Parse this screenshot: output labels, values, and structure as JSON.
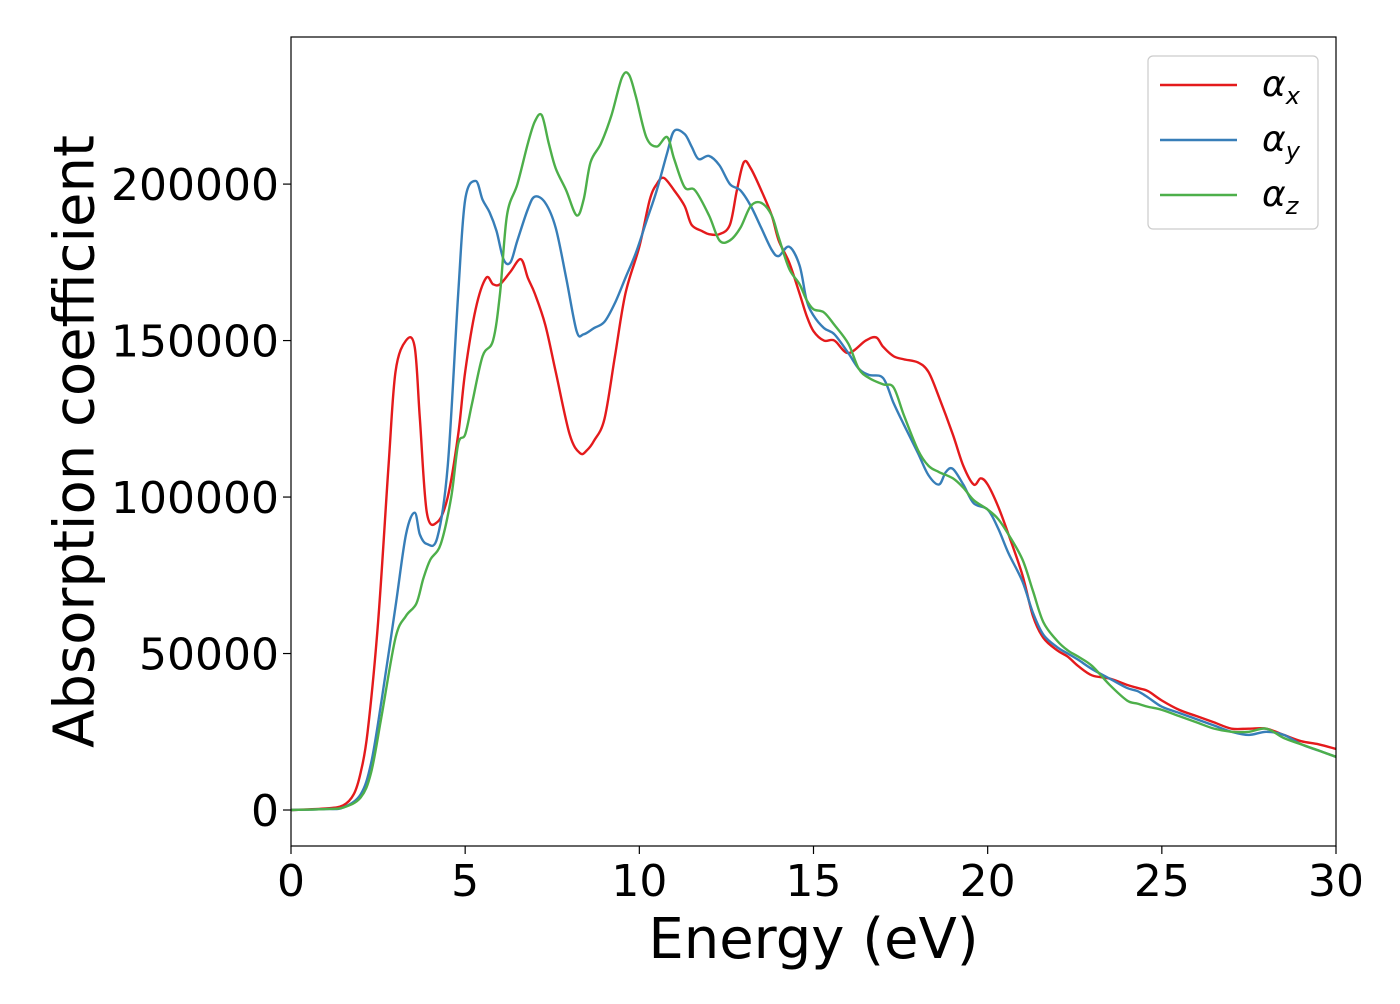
{
  "chart_data": {
    "type": "line",
    "title": "",
    "xlabel": "Energy (eV)",
    "ylabel": "Absorption coefficient",
    "xlim": [
      0,
      30
    ],
    "ylim": [
      -11500,
      247000
    ],
    "xticks": [
      0,
      5,
      10,
      15,
      20,
      25,
      30
    ],
    "yticks": [
      0,
      50000,
      100000,
      150000,
      200000
    ],
    "legend_position": "top-right",
    "grid": false,
    "series": [
      {
        "name_base": "α",
        "name_sub": "x",
        "color": "#e41a1c",
        "x": [
          0,
          1,
          1.5,
          1.8,
          2,
          2.2,
          2.5,
          2.8,
          3,
          3.3,
          3.55,
          3.7,
          3.9,
          4.2,
          4.5,
          4.8,
          5,
          5.3,
          5.6,
          5.8,
          6,
          6.3,
          6.6,
          6.8,
          7,
          7.3,
          7.6,
          8,
          8.3,
          8.5,
          8.7,
          9,
          9.3,
          9.6,
          10,
          10.3,
          10.5,
          10.7,
          11,
          11.3,
          11.5,
          11.8,
          12,
          12.3,
          12.6,
          12.8,
          13,
          13.2,
          13.5,
          13.8,
          14,
          14.3,
          14.6,
          14.8,
          15,
          15.3,
          15.6,
          16,
          16.5,
          16.8,
          17,
          17.3,
          17.6,
          18,
          18.3,
          18.6,
          19,
          19.3,
          19.6,
          19.8,
          20,
          20.3,
          20.6,
          21,
          21.3,
          21.6,
          22,
          22.3,
          22.6,
          23,
          23.5,
          24,
          24.3,
          24.6,
          25,
          25.5,
          26,
          26.5,
          27,
          27.5,
          28,
          28.5,
          29,
          29.5,
          30
        ],
        "y": [
          0,
          500,
          1500,
          5000,
          12000,
          25000,
          60000,
          110000,
          140000,
          150000,
          148000,
          125000,
          95000,
          92000,
          100000,
          120000,
          140000,
          160000,
          170000,
          168000,
          168000,
          172000,
          176000,
          170000,
          165000,
          155000,
          140000,
          120000,
          114000,
          115000,
          118000,
          125000,
          145000,
          165000,
          180000,
          195000,
          200000,
          202000,
          198000,
          193000,
          187000,
          185000,
          184000,
          184000,
          187000,
          198000,
          207000,
          205000,
          198000,
          190000,
          182000,
          175000,
          165000,
          158000,
          153000,
          150000,
          150000,
          146000,
          150000,
          151000,
          148000,
          145000,
          144000,
          143000,
          140000,
          132000,
          120000,
          110000,
          104000,
          106000,
          104000,
          97000,
          88000,
          75000,
          62000,
          55000,
          51000,
          49000,
          46000,
          43000,
          42000,
          40000,
          39000,
          38000,
          35000,
          32000,
          30000,
          28000,
          26000,
          26000,
          26000,
          24000,
          22000,
          21000,
          19500
        ]
      },
      {
        "name_base": "α",
        "name_sub": "y",
        "color": "#377eb8",
        "x": [
          0,
          1,
          1.5,
          2,
          2.3,
          2.6,
          3,
          3.3,
          3.55,
          3.7,
          3.9,
          4.2,
          4.5,
          4.8,
          5,
          5.3,
          5.5,
          5.7,
          5.9,
          6.1,
          6.3,
          6.5,
          6.8,
          7,
          7.3,
          7.6,
          7.9,
          8.2,
          8.4,
          8.7,
          9,
          9.3,
          9.6,
          9.9,
          10.2,
          10.5,
          10.8,
          11,
          11.3,
          11.5,
          11.7,
          12,
          12.3,
          12.6,
          12.9,
          13.2,
          13.5,
          13.8,
          14,
          14.3,
          14.6,
          14.8,
          15,
          15.3,
          15.6,
          16,
          16.3,
          16.6,
          17,
          17.3,
          17.6,
          18,
          18.3,
          18.6,
          18.8,
          19,
          19.3,
          19.6,
          20,
          20.3,
          20.6,
          21,
          21.3,
          21.6,
          22,
          22.3,
          22.6,
          23,
          23.5,
          24,
          24.3,
          24.6,
          25,
          25.5,
          26,
          26.5,
          27,
          27.5,
          28,
          28.5,
          29,
          29.5,
          30
        ],
        "y": [
          0,
          300,
          800,
          5000,
          15000,
          35000,
          65000,
          88000,
          95000,
          88000,
          85000,
          87000,
          110000,
          165000,
          195000,
          201000,
          195000,
          191000,
          185000,
          176000,
          175000,
          182000,
          192000,
          196000,
          194000,
          186000,
          170000,
          153000,
          152000,
          154000,
          156000,
          162000,
          170000,
          178000,
          188000,
          198000,
          210000,
          217000,
          216000,
          212000,
          208000,
          209000,
          206000,
          200000,
          198000,
          193000,
          186000,
          179000,
          177000,
          180000,
          174000,
          163000,
          158000,
          154000,
          152000,
          146000,
          141000,
          139000,
          138000,
          130000,
          123000,
          114000,
          107000,
          104000,
          108000,
          109000,
          104000,
          98000,
          96000,
          90000,
          82000,
          73000,
          63000,
          56000,
          52000,
          50000,
          48000,
          45000,
          42000,
          39000,
          38000,
          36000,
          33000,
          31000,
          29000,
          27000,
          25000,
          24000,
          25000,
          24000,
          21000,
          19000,
          17000
        ]
      },
      {
        "name_base": "α",
        "name_sub": "z",
        "color": "#4daf4a",
        "x": [
          0,
          1,
          1.5,
          2,
          2.3,
          2.6,
          3,
          3.3,
          3.6,
          3.8,
          4,
          4.3,
          4.6,
          4.8,
          5,
          5.2,
          5.5,
          5.8,
          6,
          6.2,
          6.5,
          6.8,
          7,
          7.2,
          7.4,
          7.6,
          7.9,
          8.2,
          8.4,
          8.6,
          8.9,
          9.2,
          9.5,
          9.7,
          9.9,
          10.2,
          10.5,
          10.8,
          11,
          11.3,
          11.6,
          12,
          12.3,
          12.6,
          12.9,
          13.2,
          13.5,
          13.8,
          14,
          14.3,
          14.6,
          14.8,
          15,
          15.3,
          15.6,
          16,
          16.3,
          16.6,
          17,
          17.3,
          17.6,
          18,
          18.3,
          18.6,
          19,
          19.3,
          19.6,
          20,
          20.3,
          20.6,
          21,
          21.3,
          21.6,
          22,
          22.3,
          22.6,
          23,
          23.5,
          24,
          24.3,
          24.6,
          25,
          25.5,
          26,
          26.5,
          27,
          27.5,
          28,
          28.5,
          29,
          29.5,
          30
        ],
        "y": [
          0,
          300,
          800,
          4000,
          12000,
          30000,
          55000,
          62000,
          66000,
          74000,
          80000,
          85000,
          100000,
          117000,
          120000,
          130000,
          145000,
          150000,
          165000,
          190000,
          200000,
          213000,
          220000,
          222000,
          213000,
          205000,
          198000,
          190000,
          195000,
          207000,
          213000,
          222000,
          234000,
          235000,
          228000,
          215000,
          212000,
          215000,
          208000,
          199000,
          198000,
          190000,
          182000,
          182000,
          186000,
          193000,
          194000,
          190000,
          183000,
          173000,
          168000,
          163000,
          160000,
          159000,
          155000,
          149000,
          141000,
          138000,
          136000,
          135000,
          126000,
          115000,
          110000,
          108000,
          106000,
          103000,
          99000,
          96000,
          93000,
          88000,
          80000,
          70000,
          60000,
          54000,
          51000,
          49000,
          46000,
          40000,
          35000,
          34000,
          33000,
          32000,
          30000,
          28000,
          26000,
          25000,
          25000,
          26000,
          23000,
          21000,
          19000,
          17000
        ]
      }
    ]
  }
}
